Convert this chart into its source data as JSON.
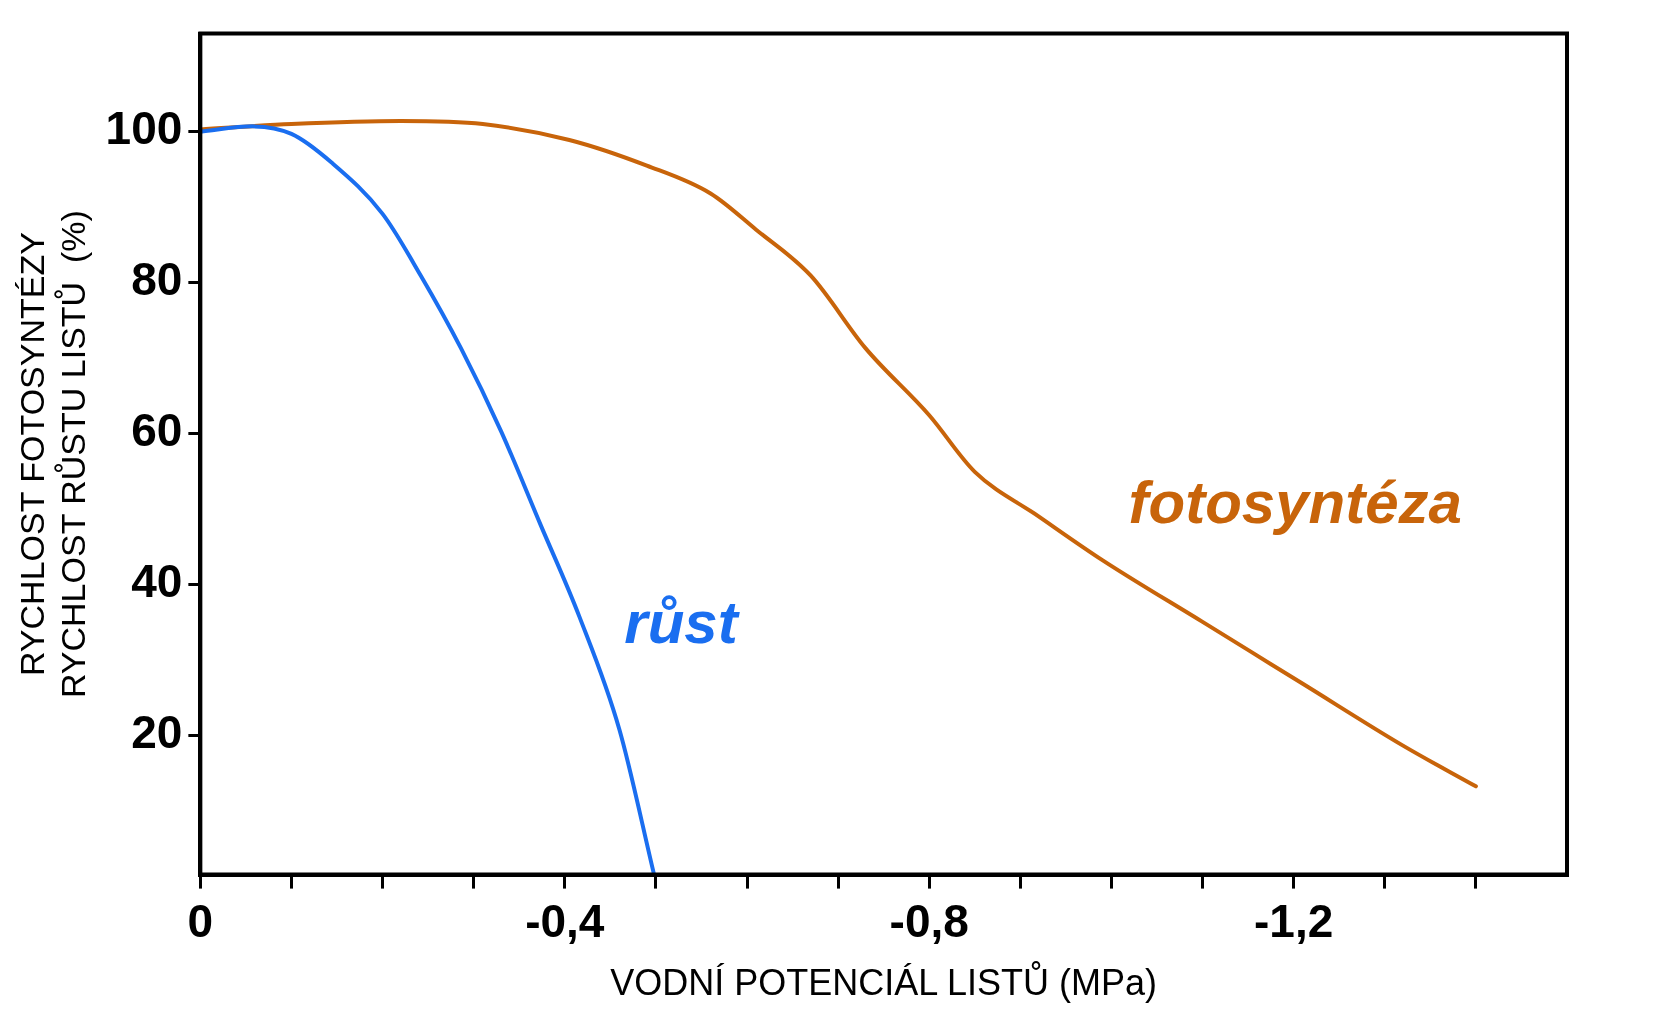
{
  "chart_data": {
    "type": "line",
    "xlabel": "VODNÍ POTENCIÁL LISTŮ (MPa)",
    "ylabel": "RYCHLOST FOTOSYNTÉZY\nRYCHLOST RŮSTU LISTŮ  (%)",
    "xlim": [
      0,
      -1.5
    ],
    "xticks": [
      {
        "value": 0,
        "label": "0"
      },
      {
        "value": -0.1,
        "label": null
      },
      {
        "value": -0.2,
        "label": null
      },
      {
        "value": -0.3,
        "label": null
      },
      {
        "value": -0.4,
        "label": "-0,4"
      },
      {
        "value": -0.5,
        "label": null
      },
      {
        "value": -0.6,
        "label": null
      },
      {
        "value": -0.7,
        "label": null
      },
      {
        "value": -0.8,
        "label": "-0,8"
      },
      {
        "value": -0.9,
        "label": null
      },
      {
        "value": -1.0,
        "label": null
      },
      {
        "value": -1.1,
        "label": null
      },
      {
        "value": -1.2,
        "label": "-1,2"
      },
      {
        "value": -1.3,
        "label": null
      },
      {
        "value": -1.4,
        "label": null
      }
    ],
    "ylim": [
      1.5,
      113
    ],
    "yticks": [
      20,
      40,
      60,
      80,
      100
    ],
    "grid": false,
    "legend": false,
    "marker": "none",
    "line_style": "solid",
    "series": [
      {
        "name": "růst",
        "color": "#1a6ef0",
        "x": [
          0,
          -0.057,
          -0.1,
          -0.144,
          -0.2,
          -0.242,
          -0.286,
          -0.33,
          -0.373,
          -0.416,
          -0.46,
          -0.498
        ],
        "values": [
          100,
          100.7,
          99.7,
          95.9,
          89.1,
          80.9,
          71.3,
          60.3,
          48,
          35.7,
          20.7,
          1.5
        ]
      },
      {
        "name": "fotosyntéza",
        "color": "#c8640a",
        "x": [
          0,
          -0.1,
          -0.22,
          -0.31,
          -0.405,
          -0.49,
          -0.56,
          -0.61,
          -0.67,
          -0.73,
          -0.8,
          -0.85,
          -0.92,
          -0.99,
          -1.1,
          -1.21,
          -1.32,
          -1.4
        ],
        "values": [
          100.3,
          101,
          101.4,
          101,
          98.9,
          95.5,
          91.8,
          87,
          80.9,
          71.3,
          62.4,
          54.9,
          49,
          43.2,
          35,
          26.8,
          18.6,
          13.2
        ]
      }
    ]
  }
}
